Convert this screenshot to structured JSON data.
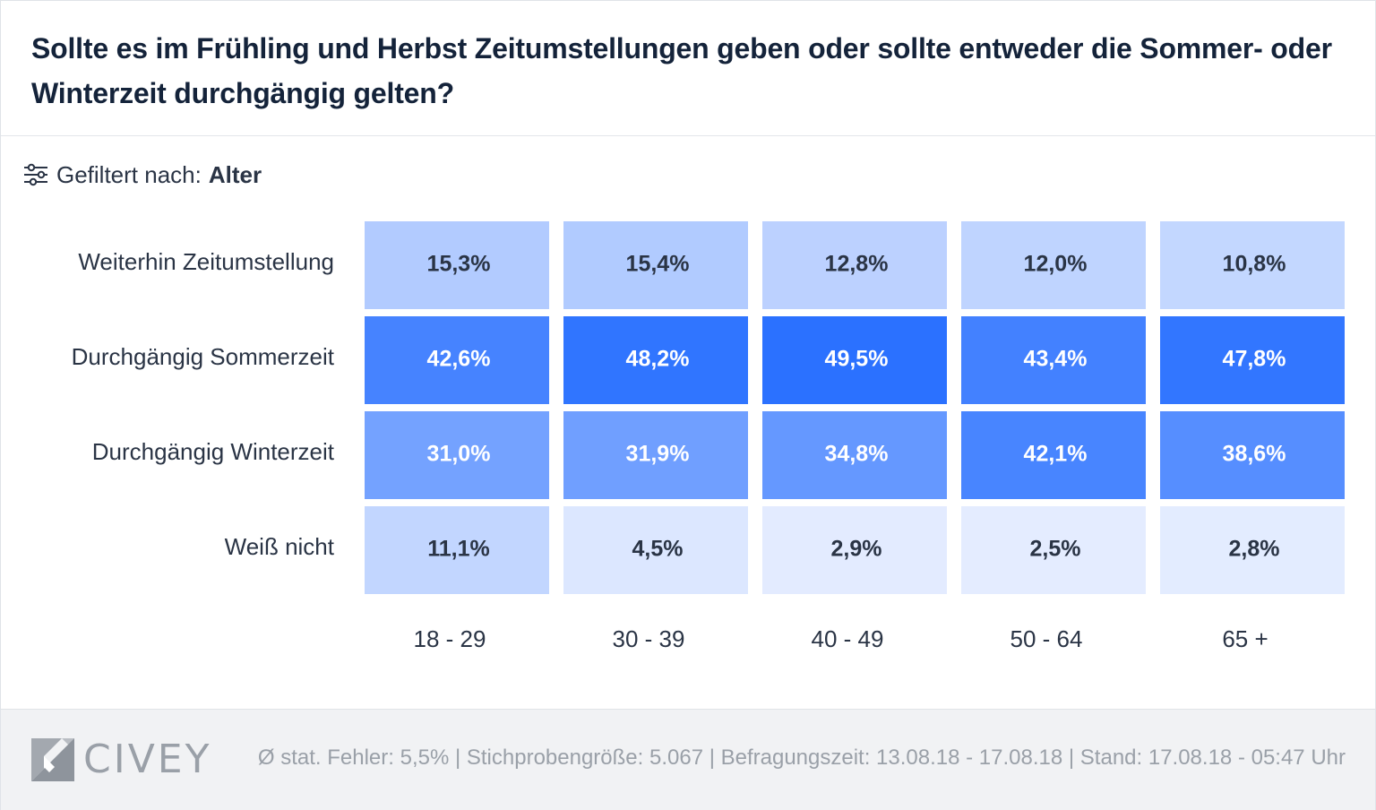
{
  "title": "Sollte es im Frühling und Herbst Zeitumstellungen geben oder sollte entweder die Sommer- oder Winterzeit durchgängig gelten?",
  "filter": {
    "label": "Gefiltert nach:",
    "value": "Alter",
    "icon": "sliders-icon"
  },
  "colors": {
    "text": "#2a3445",
    "title": "#14233a",
    "scale_low": "#eef3ff",
    "scale_high": "#2970ff",
    "footer_bg": "#f1f2f4",
    "muted": "#9aa0a8"
  },
  "chart_data": {
    "type": "heatmap",
    "title": "Sollte es im Frühling und Herbst Zeitumstellungen geben oder sollte entweder die Sommer- oder Winterzeit durchgängig gelten?",
    "rows": [
      "Weiterhin Zeitumstellung",
      "Durchgängig Sommerzeit",
      "Durchgängig Winterzeit",
      "Weiß nicht"
    ],
    "columns": [
      "18 - 29",
      "30 - 39",
      "40 - 49",
      "50 - 64",
      "65 +"
    ],
    "values": [
      [
        15.3,
        15.4,
        12.8,
        12.0,
        10.8
      ],
      [
        42.6,
        48.2,
        49.5,
        43.4,
        47.8
      ],
      [
        31.0,
        31.9,
        34.8,
        42.1,
        38.6
      ],
      [
        11.1,
        4.5,
        2.9,
        2.5,
        2.8
      ]
    ],
    "labels": [
      [
        "15,3%",
        "15,4%",
        "12,8%",
        "12,0%",
        "10,8%"
      ],
      [
        "42,6%",
        "48,2%",
        "49,5%",
        "43,4%",
        "47,8%"
      ],
      [
        "31,0%",
        "31,9%",
        "34,8%",
        "42,1%",
        "38,6%"
      ],
      [
        "11,1%",
        "4,5%",
        "2,9%",
        "2,5%",
        "2,8%"
      ]
    ],
    "unit": "%"
  },
  "footer": {
    "logo_text": "CIVEY",
    "meta": "Ø stat. Fehler: 5,5% | Stichprobengröße: 5.067 | Befragungszeit: 13.08.18 - 17.08.18 | Stand: 17.08.18 - 05:47 Uhr"
  }
}
